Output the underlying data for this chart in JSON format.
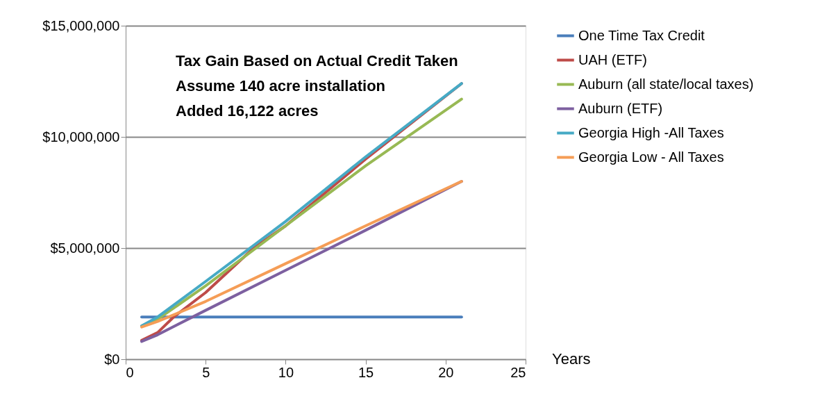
{
  "chart_data": {
    "type": "line",
    "xlabel": "Years",
    "annotations": [
      "Tax Gain Based on Actual Credit Taken",
      "Assume 140 acre installation",
      "Added 16,122 acres"
    ],
    "xlim": [
      0,
      25
    ],
    "xticks": [
      0,
      5,
      10,
      15,
      20,
      25
    ],
    "ylim": [
      0,
      15000000
    ],
    "yticks": [
      {
        "value": 0,
        "label": "$0"
      },
      {
        "value": 5000000,
        "label": "$5,000,000"
      },
      {
        "value": 10000000,
        "label": "$10,000,000"
      },
      {
        "value": 15000000,
        "label": "$15,000,000"
      }
    ],
    "grid": "y",
    "legend": "right",
    "line_style": "solid",
    "series": [
      {
        "name": "One Time Tax Credit",
        "color": "#4a7ebb",
        "x": [
          1,
          21
        ],
        "values": [
          1900000,
          1900000
        ]
      },
      {
        "name": "UAH (ETF)",
        "color": "#be4b48",
        "x": [
          1,
          2,
          3,
          5,
          8,
          10,
          15,
          21
        ],
        "values": [
          850000,
          1200000,
          1900000,
          3000000,
          5000000,
          6000000,
          9000000,
          12400000
        ]
      },
      {
        "name": "Auburn (all state/local taxes)",
        "color": "#98b954",
        "x": [
          1,
          2,
          5,
          10,
          15,
          21
        ],
        "values": [
          1500000,
          1800000,
          3300000,
          6000000,
          8700000,
          11700000
        ]
      },
      {
        "name": "Auburn (ETF)",
        "color": "#7d60a0",
        "x": [
          1,
          2,
          5,
          10,
          15,
          21
        ],
        "values": [
          800000,
          1100000,
          2200000,
          4000000,
          5800000,
          8000000
        ]
      },
      {
        "name": "Georgia High -All Taxes",
        "color": "#46aac5",
        "x": [
          1,
          2,
          5,
          10,
          15,
          21
        ],
        "values": [
          1500000,
          1900000,
          3500000,
          6200000,
          9100000,
          12400000
        ]
      },
      {
        "name": "Georgia Low - All Taxes",
        "color": "#f59d56",
        "x": [
          1,
          2,
          5,
          10,
          15,
          21
        ],
        "values": [
          1450000,
          1700000,
          2600000,
          4300000,
          6000000,
          8000000
        ]
      }
    ]
  }
}
